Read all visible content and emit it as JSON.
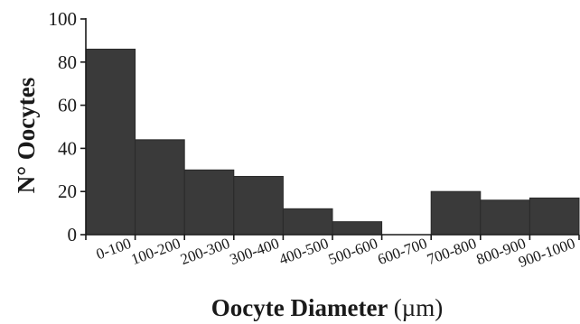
{
  "chart_data": {
    "type": "bar",
    "categories": [
      "0-100",
      "100-200",
      "200-300",
      "300-400",
      "400-500",
      "500-600",
      "600-700",
      "700-800",
      "800-900",
      "900-1000"
    ],
    "values": [
      86,
      44,
      30,
      27,
      12,
      6,
      0,
      20,
      16,
      17
    ],
    "ylabel": "N° Oocytes",
    "xlabel_main": "Oocyte Diameter ",
    "xlabel_unit": "(µm)",
    "ylim": [
      0,
      100
    ],
    "yticks": [
      0,
      20,
      40,
      60,
      80,
      100
    ],
    "grid": false,
    "colors": {
      "bar": "#3a3a3a",
      "axis": "#1a1a1a"
    }
  }
}
